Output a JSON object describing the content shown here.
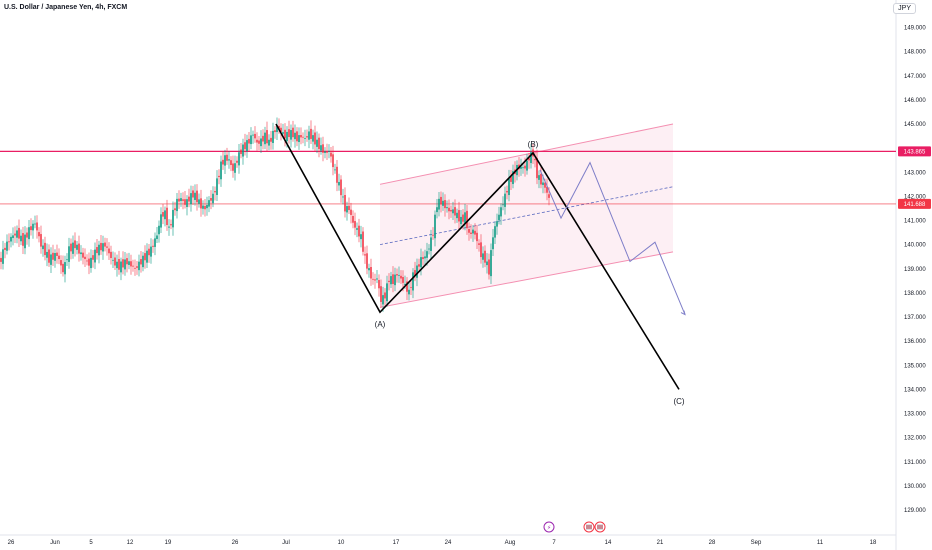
{
  "header": {
    "title": "U.S. Dollar / Japanese Yen, 4h, FXCM",
    "currency": "JPY"
  },
  "chart_data": {
    "type": "candlestick",
    "symbol": "USDJPY",
    "timeframe": "4h",
    "source": "FXCM",
    "y_axis": {
      "ticks": [
        "149.000",
        "148.000",
        "147.000",
        "146.000",
        "145.000",
        "143.000",
        "142.000",
        "141.000",
        "140.000",
        "139.000",
        "138.000",
        "137.000",
        "136.000",
        "135.000",
        "134.000",
        "133.000",
        "132.000",
        "131.000",
        "130.000",
        "129.000"
      ],
      "range": [
        128.6,
        149.5
      ]
    },
    "x_axis": {
      "ticks": [
        "26",
        "Jun",
        "5",
        "12",
        "19",
        "26",
        "Jul",
        "10",
        "17",
        "24",
        "Aug",
        "7",
        "14",
        "21",
        "28",
        "Sep",
        "11",
        "18"
      ]
    },
    "horizontal_levels": [
      {
        "label": "143.865",
        "value": 143.865,
        "color": "#e91e63"
      },
      {
        "label": "141.688",
        "value": 141.688,
        "color": "#f23645"
      }
    ],
    "price_path": [
      [
        0,
        139.2
      ],
      [
        6,
        139.9
      ],
      [
        12,
        140.3
      ],
      [
        18,
        140.5
      ],
      [
        24,
        140.1
      ],
      [
        30,
        140.6
      ],
      [
        36,
        140.9
      ],
      [
        42,
        140.0
      ],
      [
        50,
        139.4
      ],
      [
        58,
        139.6
      ],
      [
        64,
        138.9
      ],
      [
        70,
        139.8
      ],
      [
        76,
        140.0
      ],
      [
        82,
        139.6
      ],
      [
        90,
        139.2
      ],
      [
        98,
        139.8
      ],
      [
        106,
        140.0
      ],
      [
        114,
        139.3
      ],
      [
        120,
        139.1
      ],
      [
        128,
        139.3
      ],
      [
        136,
        139.0
      ],
      [
        144,
        139.4
      ],
      [
        152,
        139.8
      ],
      [
        158,
        140.4
      ],
      [
        162,
        141.2
      ],
      [
        166,
        141.3
      ],
      [
        170,
        140.6
      ],
      [
        174,
        141.3
      ],
      [
        178,
        141.8
      ],
      [
        182,
        141.9
      ],
      [
        186,
        141.7
      ],
      [
        190,
        141.9
      ],
      [
        194,
        142.1
      ],
      [
        198,
        141.9
      ],
      [
        202,
        141.6
      ],
      [
        206,
        141.5
      ],
      [
        210,
        141.8
      ],
      [
        214,
        142.0
      ],
      [
        218,
        142.6
      ],
      [
        222,
        143.3
      ],
      [
        226,
        143.6
      ],
      [
        230,
        143.5
      ],
      [
        234,
        143.1
      ],
      [
        238,
        143.5
      ],
      [
        242,
        143.9
      ],
      [
        246,
        144.1
      ],
      [
        250,
        144.3
      ],
      [
        254,
        144.6
      ],
      [
        258,
        144.2
      ],
      [
        262,
        144.3
      ],
      [
        266,
        144.5
      ],
      [
        270,
        144.2
      ],
      [
        274,
        144.6
      ],
      [
        278,
        144.9
      ],
      [
        282,
        144.7
      ],
      [
        286,
        144.5
      ],
      [
        290,
        144.6
      ],
      [
        294,
        144.6
      ],
      [
        298,
        144.4
      ],
      [
        302,
        144.5
      ],
      [
        306,
        144.4
      ],
      [
        310,
        144.6
      ],
      [
        314,
        144.4
      ],
      [
        318,
        144.2
      ],
      [
        322,
        144.0
      ],
      [
        326,
        143.8
      ],
      [
        330,
        143.9
      ],
      [
        334,
        143.3
      ],
      [
        338,
        142.7
      ],
      [
        342,
        142.2
      ],
      [
        346,
        141.5
      ],
      [
        350,
        141.5
      ],
      [
        354,
        140.9
      ],
      [
        358,
        140.6
      ],
      [
        362,
        140.3
      ],
      [
        366,
        139.4
      ],
      [
        370,
        138.9
      ],
      [
        374,
        138.5
      ],
      [
        378,
        138.6
      ],
      [
        382,
        137.7
      ],
      [
        386,
        137.9
      ],
      [
        390,
        138.6
      ],
      [
        394,
        138.5
      ],
      [
        398,
        138.8
      ],
      [
        402,
        138.6
      ],
      [
        406,
        138.3
      ],
      [
        410,
        138.0
      ],
      [
        414,
        138.7
      ],
      [
        418,
        139.0
      ],
      [
        422,
        139.4
      ],
      [
        426,
        139.5
      ],
      [
        430,
        139.9
      ],
      [
        434,
        140.5
      ],
      [
        438,
        141.7
      ],
      [
        442,
        141.8
      ],
      [
        446,
        141.6
      ],
      [
        450,
        141.4
      ],
      [
        454,
        141.4
      ],
      [
        458,
        141.2
      ],
      [
        462,
        141.0
      ],
      [
        466,
        141.2
      ],
      [
        470,
        140.4
      ],
      [
        474,
        140.6
      ],
      [
        478,
        140.2
      ],
      [
        482,
        139.6
      ],
      [
        486,
        139.4
      ],
      [
        490,
        138.9
      ],
      [
        494,
        140.4
      ],
      [
        498,
        141.0
      ],
      [
        502,
        141.5
      ],
      [
        506,
        142.0
      ],
      [
        510,
        142.6
      ],
      [
        514,
        142.9
      ],
      [
        518,
        143.2
      ],
      [
        522,
        143.2
      ],
      [
        526,
        143.2
      ],
      [
        530,
        143.6
      ],
      [
        534,
        143.8
      ],
      [
        538,
        142.9
      ],
      [
        542,
        142.6
      ],
      [
        546,
        142.4
      ],
      [
        550,
        141.9
      ]
    ],
    "waves": [
      {
        "label": "(A)",
        "x": 380,
        "y": 137.2
      },
      {
        "label": "(B)",
        "x": 533,
        "y": 143.8
      },
      {
        "label": "(C)",
        "x": 679,
        "y": 134.0
      }
    ],
    "elliott_lines": [
      [
        276,
        145.0
      ],
      [
        380,
        137.2
      ],
      [
        533,
        143.8
      ],
      [
        679,
        134.0
      ]
    ],
    "projection_path": [
      [
        540,
        143.1
      ],
      [
        561,
        141.1
      ],
      [
        590,
        143.4
      ],
      [
        630,
        139.3
      ],
      [
        655,
        140.1
      ],
      [
        685,
        137.1
      ]
    ],
    "channel": {
      "upper": [
        [
          380,
          142.5
        ],
        [
          673,
          145.0
        ]
      ],
      "lower": [
        [
          380,
          137.4
        ],
        [
          673,
          139.7
        ]
      ],
      "mid": [
        [
          380,
          140.0
        ],
        [
          673,
          142.4
        ]
      ]
    }
  },
  "events": {
    "lightning": "⚡",
    "flags": "US"
  }
}
